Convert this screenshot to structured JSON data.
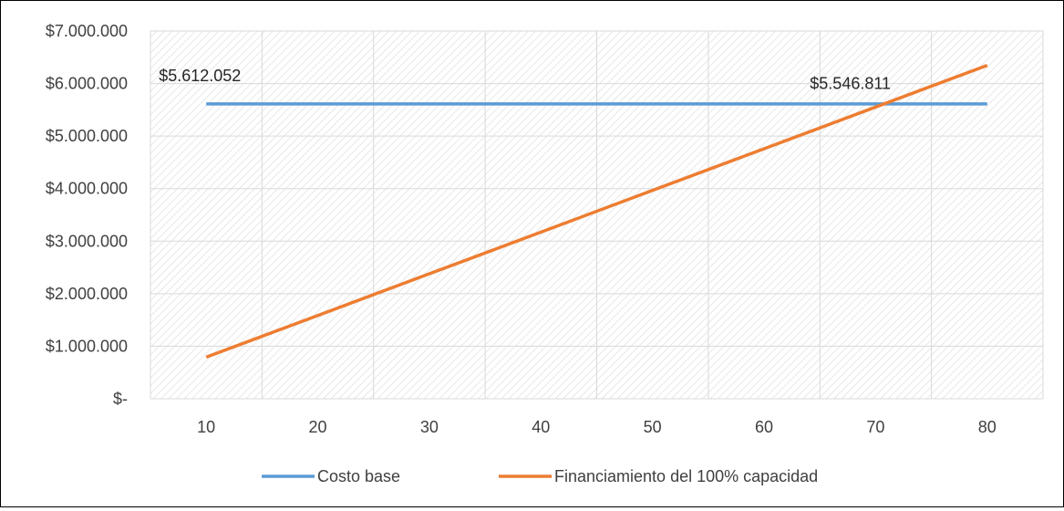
{
  "chart_data": {
    "type": "line",
    "x": [
      10,
      20,
      30,
      40,
      50,
      60,
      70,
      80
    ],
    "series": [
      {
        "name": "Costo base",
        "color": "#5B9BD5",
        "values": [
          5612052,
          5612052,
          5612052,
          5612052,
          5612052,
          5612052,
          5612052,
          5612052
        ]
      },
      {
        "name": "Financiamiento del 100% capacidad",
        "color": "#ED7D31",
        "values": [
          792000,
          1585000,
          2379000,
          3172000,
          3966000,
          4760000,
          5553000,
          6347000
        ]
      }
    ],
    "yticks": [
      {
        "value": 0,
        "label": "$-"
      },
      {
        "value": 1000000,
        "label": "$1.000.000"
      },
      {
        "value": 2000000,
        "label": "$2.000.000"
      },
      {
        "value": 3000000,
        "label": "$3.000.000"
      },
      {
        "value": 4000000,
        "label": "$4.000.000"
      },
      {
        "value": 5000000,
        "label": "$5.000.000"
      },
      {
        "value": 6000000,
        "label": "$6.000.000"
      },
      {
        "value": 7000000,
        "label": "$7.000.000"
      }
    ],
    "xticks": [
      "10",
      "20",
      "30",
      "40",
      "50",
      "60",
      "70",
      "80"
    ],
    "ylim": [
      0,
      7000000
    ],
    "xlim": [
      5,
      85
    ],
    "annotations": [
      {
        "text": "$5.612.052",
        "x": 10,
        "y": 5612052,
        "anchor": "above-right"
      },
      {
        "text": "$5.546.811",
        "x": 71,
        "y": 5546811,
        "anchor": "above"
      }
    ],
    "grid": true,
    "legend": "bottom"
  }
}
